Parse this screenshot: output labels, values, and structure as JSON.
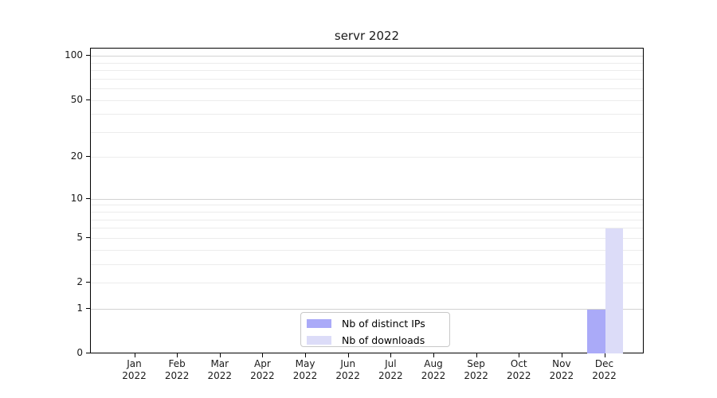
{
  "figure": {
    "background": "#ffffff",
    "frame_color": "#000000"
  },
  "chart_data": {
    "type": "bar",
    "title": "servr 2022",
    "categories": [
      "Jan 2022",
      "Feb 2022",
      "Mar 2022",
      "Apr 2022",
      "May 2022",
      "Jun 2022",
      "Jul 2022",
      "Aug 2022",
      "Sep 2022",
      "Oct 2022",
      "Nov 2022",
      "Dec 2022"
    ],
    "series": [
      {
        "name": "Nb of distinct IPs",
        "color": "#aaaaf8",
        "values": [
          0,
          0,
          0,
          0,
          0,
          0,
          0,
          0,
          0,
          0,
          0,
          1
        ]
      },
      {
        "name": "Nb of downloads",
        "color": "#dcdcf8",
        "values": [
          0,
          0,
          0,
          0,
          0,
          0,
          0,
          0,
          0,
          0,
          0,
          6
        ]
      }
    ],
    "xlabel": "",
    "ylabel": "",
    "y_scale": "log1p",
    "y_ticks": [
      0,
      1,
      2,
      5,
      10,
      20,
      50,
      100
    ],
    "y_grid_major": [
      1,
      10,
      100
    ],
    "y_grid_minor": [
      2,
      3,
      4,
      5,
      6,
      7,
      8,
      9,
      20,
      30,
      40,
      50,
      60,
      70,
      80,
      90
    ],
    "ylim": [
      0,
      113
    ],
    "grid": "horizontal",
    "legend_position": "lower-center-inside",
    "grid_major_color": "#d2d2d2",
    "grid_minor_color": "#ececec"
  }
}
